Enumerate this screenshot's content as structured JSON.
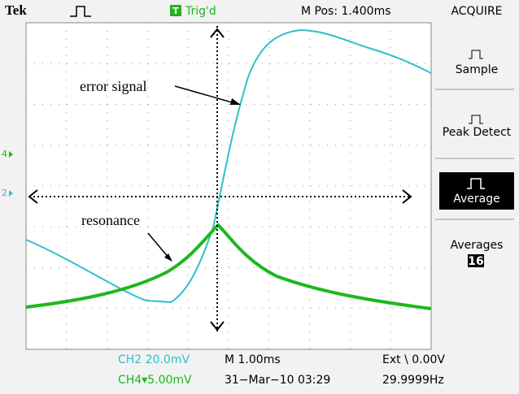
{
  "header": {
    "brand": "Tek",
    "trigger_icon": "T",
    "trigger_status": "Trig'd",
    "position": "M Pos: 1.400ms",
    "menu_title": "ACQUIRE"
  },
  "menu": {
    "sample": "Sample",
    "peak_detect": "Peak Detect",
    "average": "Average",
    "averages_label": "Averages",
    "averages_value": "16"
  },
  "markers": {
    "ch4": "4",
    "ch2": "2"
  },
  "annotations": {
    "error_signal": "error signal",
    "resonance": "resonance"
  },
  "footer": {
    "ch2_scale": "CH2 20.0mV",
    "timebase": "M 1.00ms",
    "trigger_source": "Ext \\ 0.00V",
    "ch4_scale": "CH4▾5.00mV",
    "date": "31−Mar−10 03:29",
    "frequency": "29.9999Hz"
  }
}
